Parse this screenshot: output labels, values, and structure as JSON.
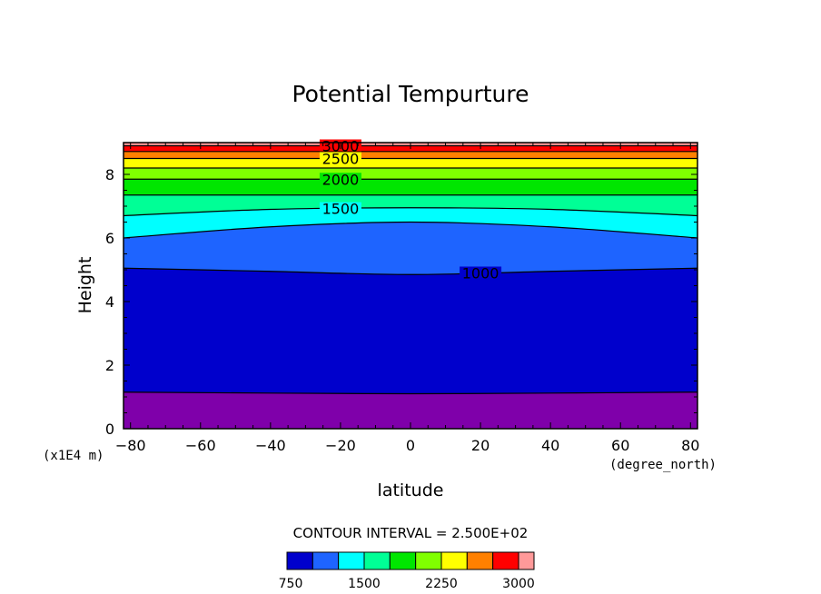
{
  "chart_data": {
    "type": "contour",
    "title": "Potential Tempurture",
    "xlabel": "latitude",
    "xunits": "(degree_north)",
    "ylabel": "Height",
    "yunits": "(x1E4 m)",
    "xlim": [
      -82,
      82
    ],
    "ylim": [
      0,
      9
    ],
    "x_ticks": [
      -80,
      -60,
      -40,
      -20,
      0,
      20,
      40,
      60,
      80
    ],
    "y_ticks": [
      0,
      2,
      4,
      6,
      8
    ],
    "contour_interval_text": "CONTOUR INTERVAL = 2.500E+02",
    "levels": [
      750,
      1000,
      1250,
      1500,
      1750,
      2000,
      2250,
      2500,
      2750,
      3000
    ],
    "colorbar": {
      "colors": [
        "#0000cc",
        "#1e64ff",
        "#00ffff",
        "#00ff96",
        "#00e600",
        "#80ff00",
        "#ffff00",
        "#ff8000",
        "#ff0000",
        "#ff9999"
      ],
      "tick_labels": [
        "750",
        "1500",
        "2250",
        "3000"
      ]
    },
    "contour_lines": [
      {
        "level": 750,
        "points": [
          [
            -82,
            1.15
          ],
          [
            -40,
            1.12
          ],
          [
            0,
            1.1
          ],
          [
            40,
            1.12
          ],
          [
            82,
            1.15
          ]
        ]
      },
      {
        "level": 1000,
        "label": "1000",
        "points": [
          [
            -82,
            5.05
          ],
          [
            -40,
            4.95
          ],
          [
            0,
            4.85
          ],
          [
            40,
            4.95
          ],
          [
            82,
            5.05
          ]
        ]
      },
      {
        "level": 1250,
        "points": [
          [
            -82,
            6.0
          ],
          [
            -40,
            6.35
          ],
          [
            0,
            6.5
          ],
          [
            40,
            6.35
          ],
          [
            82,
            6.0
          ]
        ]
      },
      {
        "level": 1500,
        "label": "1500",
        "points": [
          [
            -82,
            6.7
          ],
          [
            -40,
            6.9
          ],
          [
            0,
            6.95
          ],
          [
            40,
            6.9
          ],
          [
            82,
            6.7
          ]
        ]
      },
      {
        "level": 1750,
        "points": [
          [
            -82,
            7.35
          ],
          [
            -40,
            7.35
          ],
          [
            0,
            7.35
          ],
          [
            40,
            7.35
          ],
          [
            82,
            7.35
          ]
        ]
      },
      {
        "level": 2000,
        "label": "2000",
        "points": [
          [
            -82,
            7.85
          ],
          [
            -40,
            7.85
          ],
          [
            0,
            7.85
          ],
          [
            40,
            7.85
          ],
          [
            82,
            7.85
          ]
        ]
      },
      {
        "level": 2250,
        "points": [
          [
            -82,
            8.2
          ],
          [
            -40,
            8.2
          ],
          [
            0,
            8.2
          ],
          [
            40,
            8.2
          ],
          [
            82,
            8.2
          ]
        ]
      },
      {
        "level": 2500,
        "label": "2500",
        "points": [
          [
            -82,
            8.5
          ],
          [
            -40,
            8.5
          ],
          [
            0,
            8.5
          ],
          [
            40,
            8.5
          ],
          [
            82,
            8.5
          ]
        ]
      },
      {
        "level": 2750,
        "points": [
          [
            -82,
            8.72
          ],
          [
            -40,
            8.72
          ],
          [
            0,
            8.72
          ],
          [
            40,
            8.72
          ],
          [
            82,
            8.72
          ]
        ]
      },
      {
        "level": 3000,
        "label": "3000",
        "points": [
          [
            -82,
            8.9
          ],
          [
            -40,
            8.9
          ],
          [
            0,
            8.9
          ],
          [
            40,
            8.9
          ],
          [
            82,
            8.9
          ]
        ]
      }
    ],
    "band_colors": [
      "#7f00aa",
      "#0000cc",
      "#1e64ff",
      "#00ffff",
      "#00ff96",
      "#00e600",
      "#80ff00",
      "#ffff00",
      "#ff8000",
      "#ff0000"
    ]
  }
}
